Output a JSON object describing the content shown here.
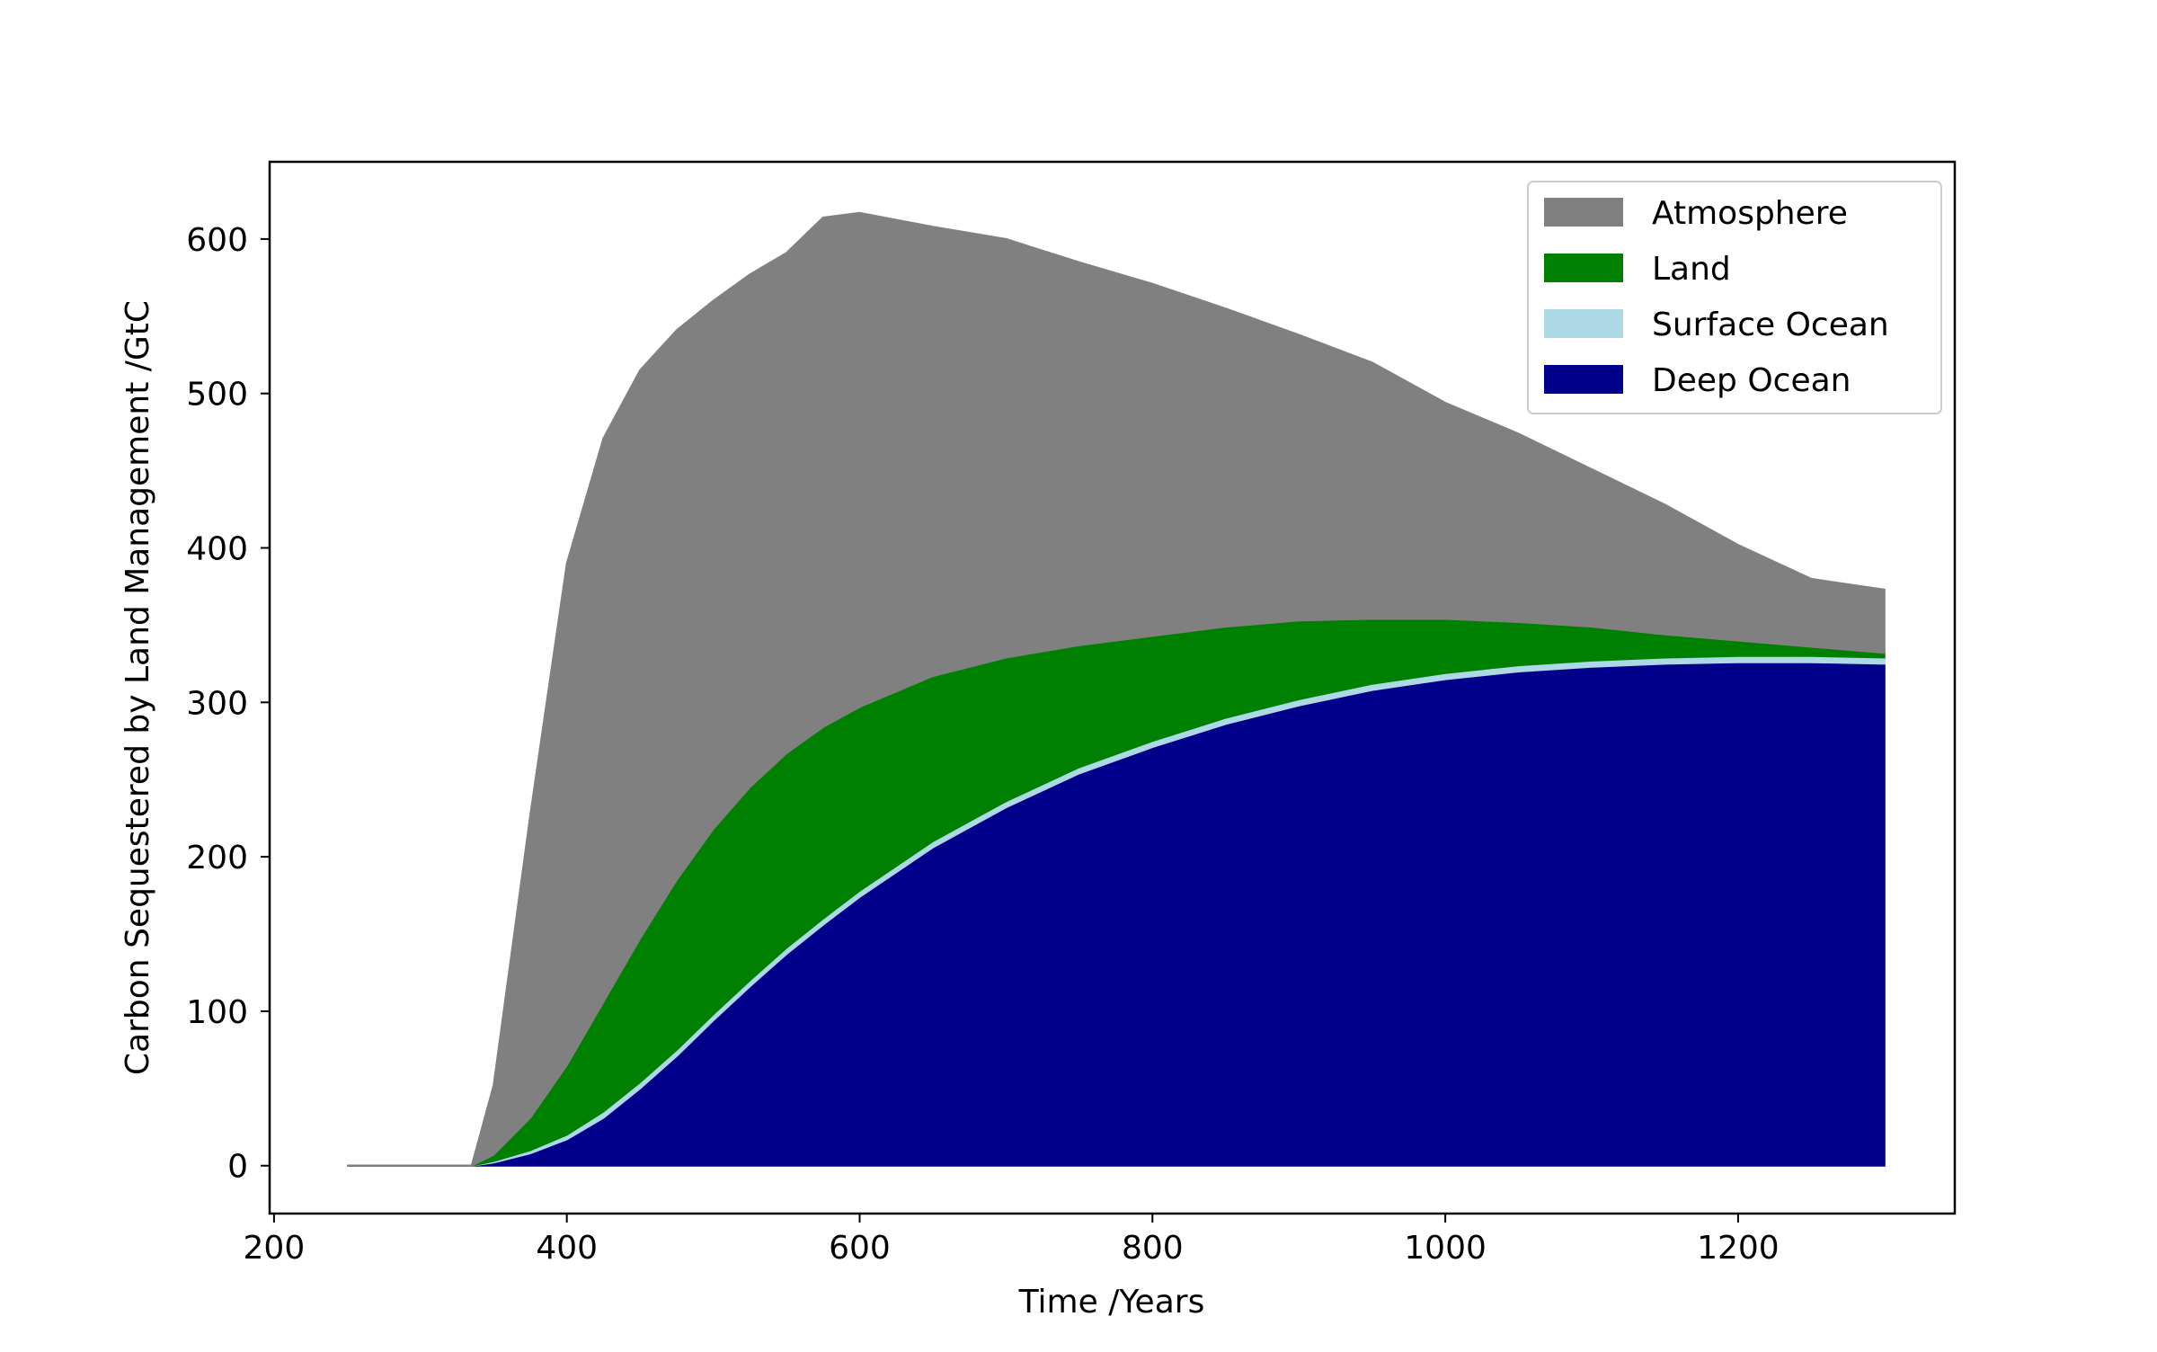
{
  "chart_data": {
    "type": "area",
    "stacked": true,
    "xlabel": "Time /Years",
    "ylabel": "Carbon Sequestered by Land Management /GtC",
    "xlim": [
      197,
      1348
    ],
    "ylim": [
      -31,
      650
    ],
    "xticks": [
      200,
      400,
      600,
      800,
      1000,
      1200
    ],
    "yticks": [
      0,
      100,
      200,
      300,
      400,
      500,
      600
    ],
    "legend_position": "top-right",
    "grid": false,
    "x": [
      250,
      300,
      335,
      350,
      375,
      400,
      425,
      450,
      475,
      500,
      525,
      550,
      575,
      600,
      650,
      700,
      750,
      800,
      850,
      900,
      950,
      1000,
      1050,
      1100,
      1150,
      1200,
      1250,
      1300
    ],
    "series": [
      {
        "name": "Deep Ocean",
        "color": "#00008B",
        "values": [
          0,
          0,
          0,
          2,
          8,
          17,
          31,
          50,
          71,
          94,
          116,
          137,
          156,
          174,
          206,
          232,
          254,
          271,
          286,
          298,
          308,
          315,
          320,
          323,
          325,
          326,
          326,
          325
        ]
      },
      {
        "name": "Surface Ocean",
        "color": "#ADD8E6",
        "values": [
          0,
          0,
          0,
          1,
          2,
          3,
          4,
          4,
          4,
          4,
          4,
          4,
          4,
          4,
          4,
          4,
          4,
          4,
          4,
          4,
          4,
          4,
          4,
          4,
          4,
          4,
          4,
          4
        ]
      },
      {
        "name": "Land",
        "color": "#008000",
        "values": [
          0,
          0,
          0,
          4,
          21,
          45,
          71,
          93,
          110,
          120,
          125,
          126,
          124,
          119,
          107,
          93,
          79,
          68,
          59,
          51,
          42,
          35,
          28,
          22,
          15,
          10,
          6,
          3
        ]
      },
      {
        "name": "Atmosphere",
        "color": "#808080",
        "values": [
          0,
          0,
          0,
          45,
          196,
          325,
          365,
          368,
          356,
          342,
          332,
          324,
          330,
          320,
          291,
          271,
          248,
          228,
          206,
          185,
          166,
          140,
          122,
          102,
          84,
          62,
          44,
          41
        ]
      }
    ]
  }
}
